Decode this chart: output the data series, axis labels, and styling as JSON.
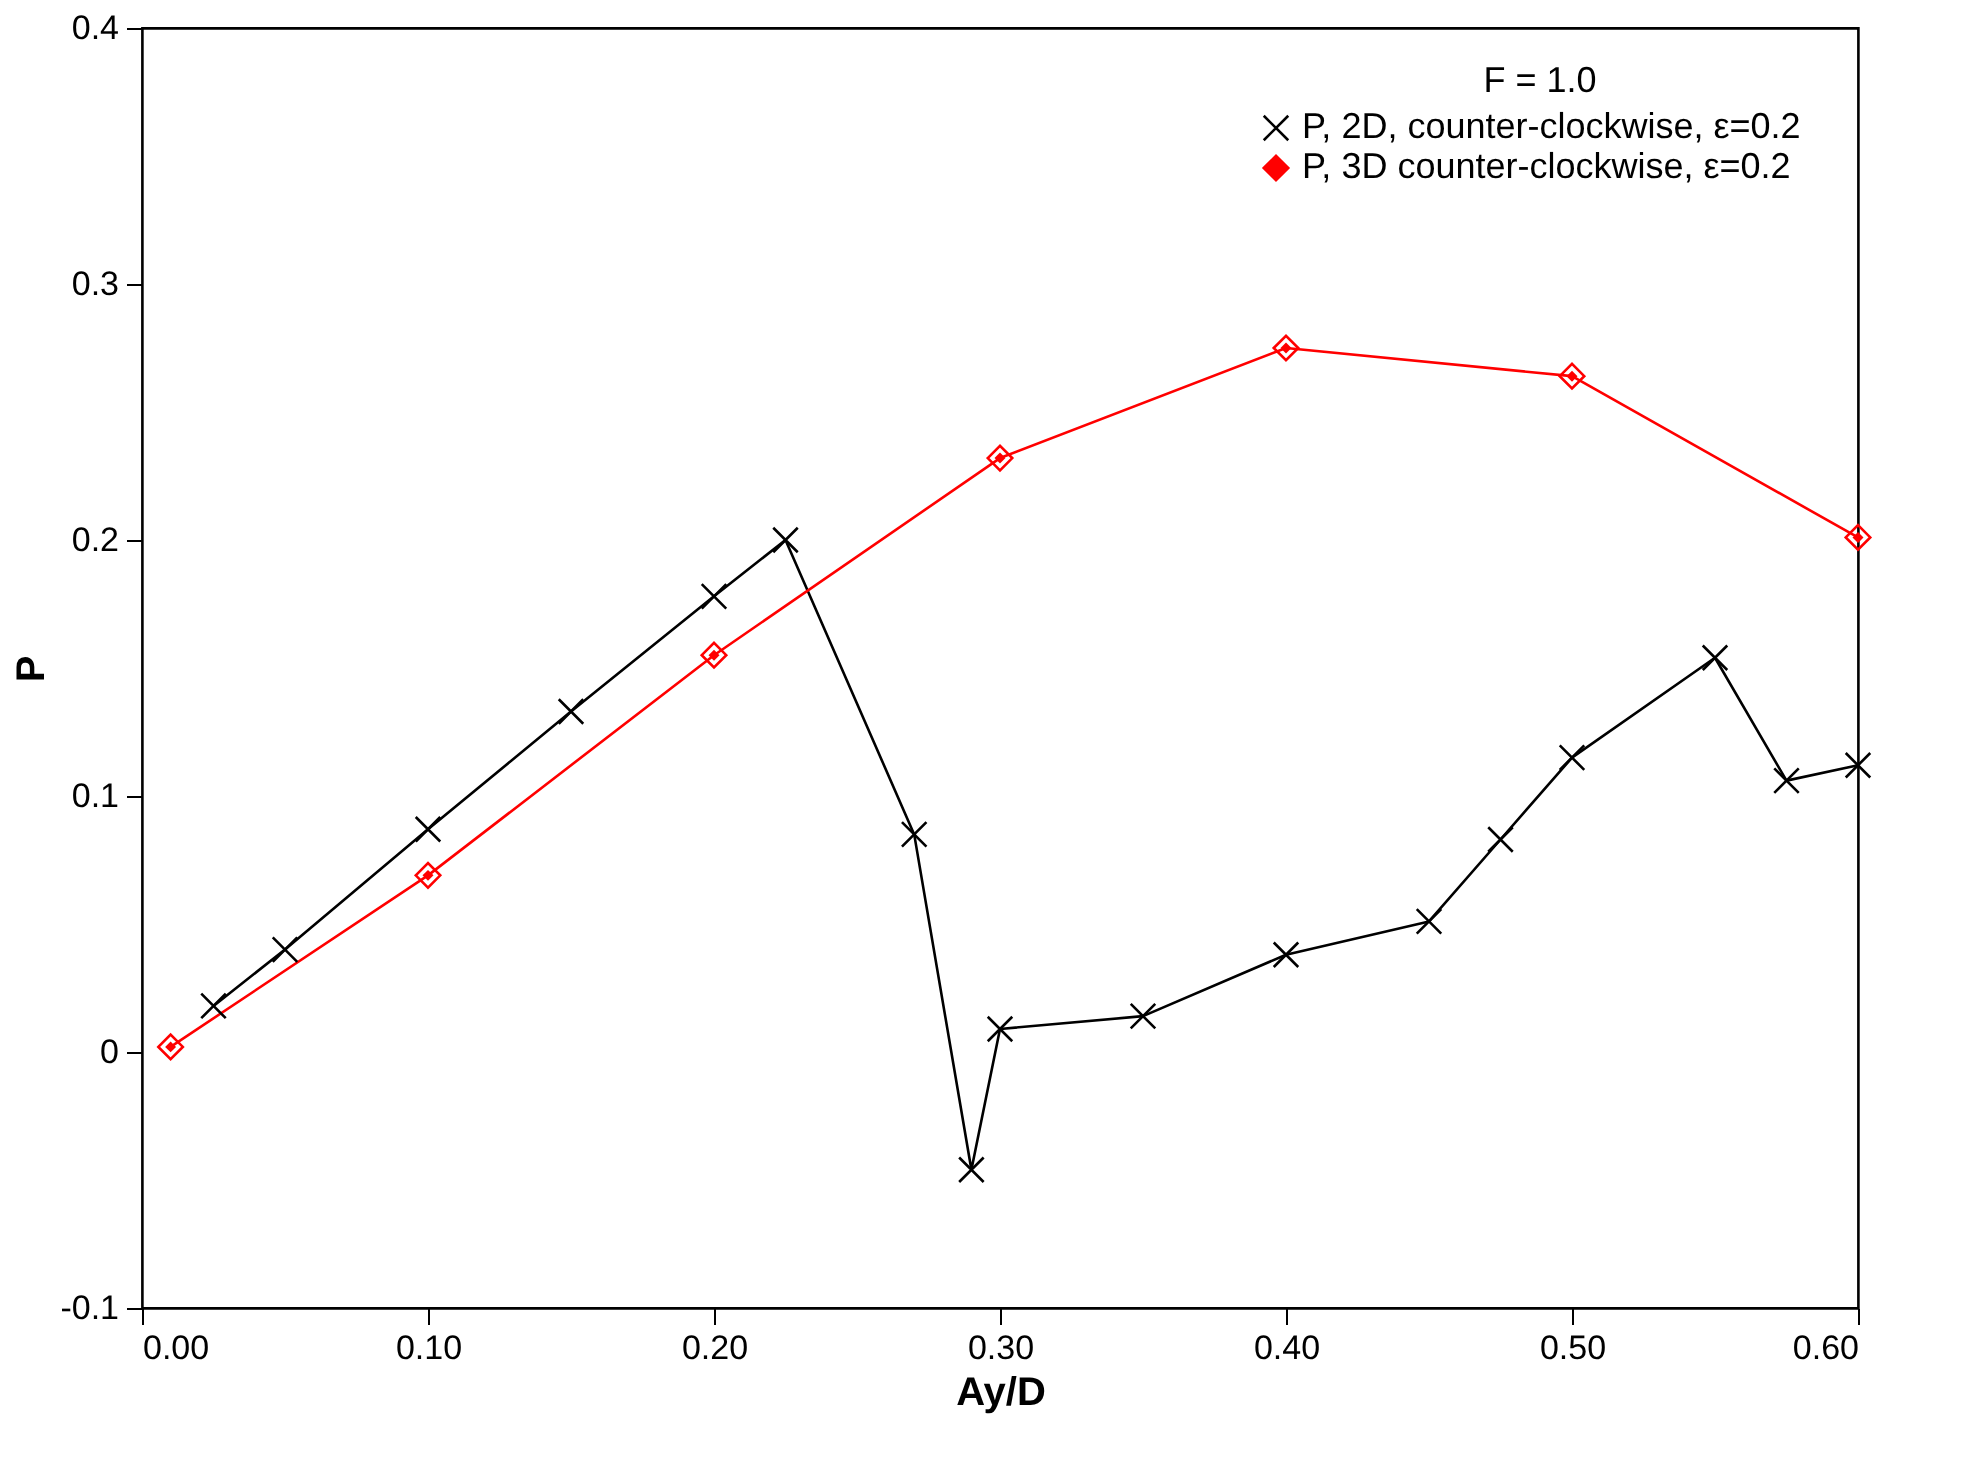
{
  "chart_data": {
    "type": "line",
    "xlabel": "Ay/D",
    "ylabel": "P",
    "legend_title": "F = 1.0",
    "xlim": [
      0,
      0.6
    ],
    "xticks": [
      {
        "value": 0,
        "label": "0.00"
      },
      {
        "value": 0.1,
        "label": "0.10"
      },
      {
        "value": 0.2,
        "label": "0.20"
      },
      {
        "value": 0.3,
        "label": "0.30"
      },
      {
        "value": 0.4,
        "label": "0.40"
      },
      {
        "value": 0.5,
        "label": "0.50"
      },
      {
        "value": 0.6,
        "label": "0.60"
      }
    ],
    "ylim": [
      -0.1,
      0.4
    ],
    "yticks": [
      -0.1,
      0,
      0.1,
      0.2,
      0.3,
      0.4
    ],
    "grid": false,
    "legend": "top right",
    "series": [
      {
        "name": "P,   2D, counter-clockwise, ε=0.2",
        "color": "#000000",
        "marker": "cross",
        "x": [
          0.025,
          0.05,
          0.1,
          0.15,
          0.2,
          0.225,
          0.27,
          0.29,
          0.3,
          0.35,
          0.4,
          0.45,
          0.475,
          0.5,
          0.55,
          0.575,
          0.6
        ],
        "values": [
          0.018,
          0.04,
          0.087,
          0.133,
          0.178,
          0.2,
          0.085,
          -0.046,
          0.009,
          0.014,
          0.038,
          0.051,
          0.083,
          0.115,
          0.154,
          0.106,
          0.112
        ]
      },
      {
        "name": "P,   3D counter-clockwise,  ε=0.2",
        "color": "#ff0000",
        "marker": "diamond",
        "x": [
          0.01,
          0.1,
          0.2,
          0.3,
          0.4,
          0.5,
          0.6
        ],
        "values": [
          0.002,
          0.069,
          0.155,
          0.232,
          0.275,
          0.264,
          0.201
        ]
      }
    ]
  }
}
